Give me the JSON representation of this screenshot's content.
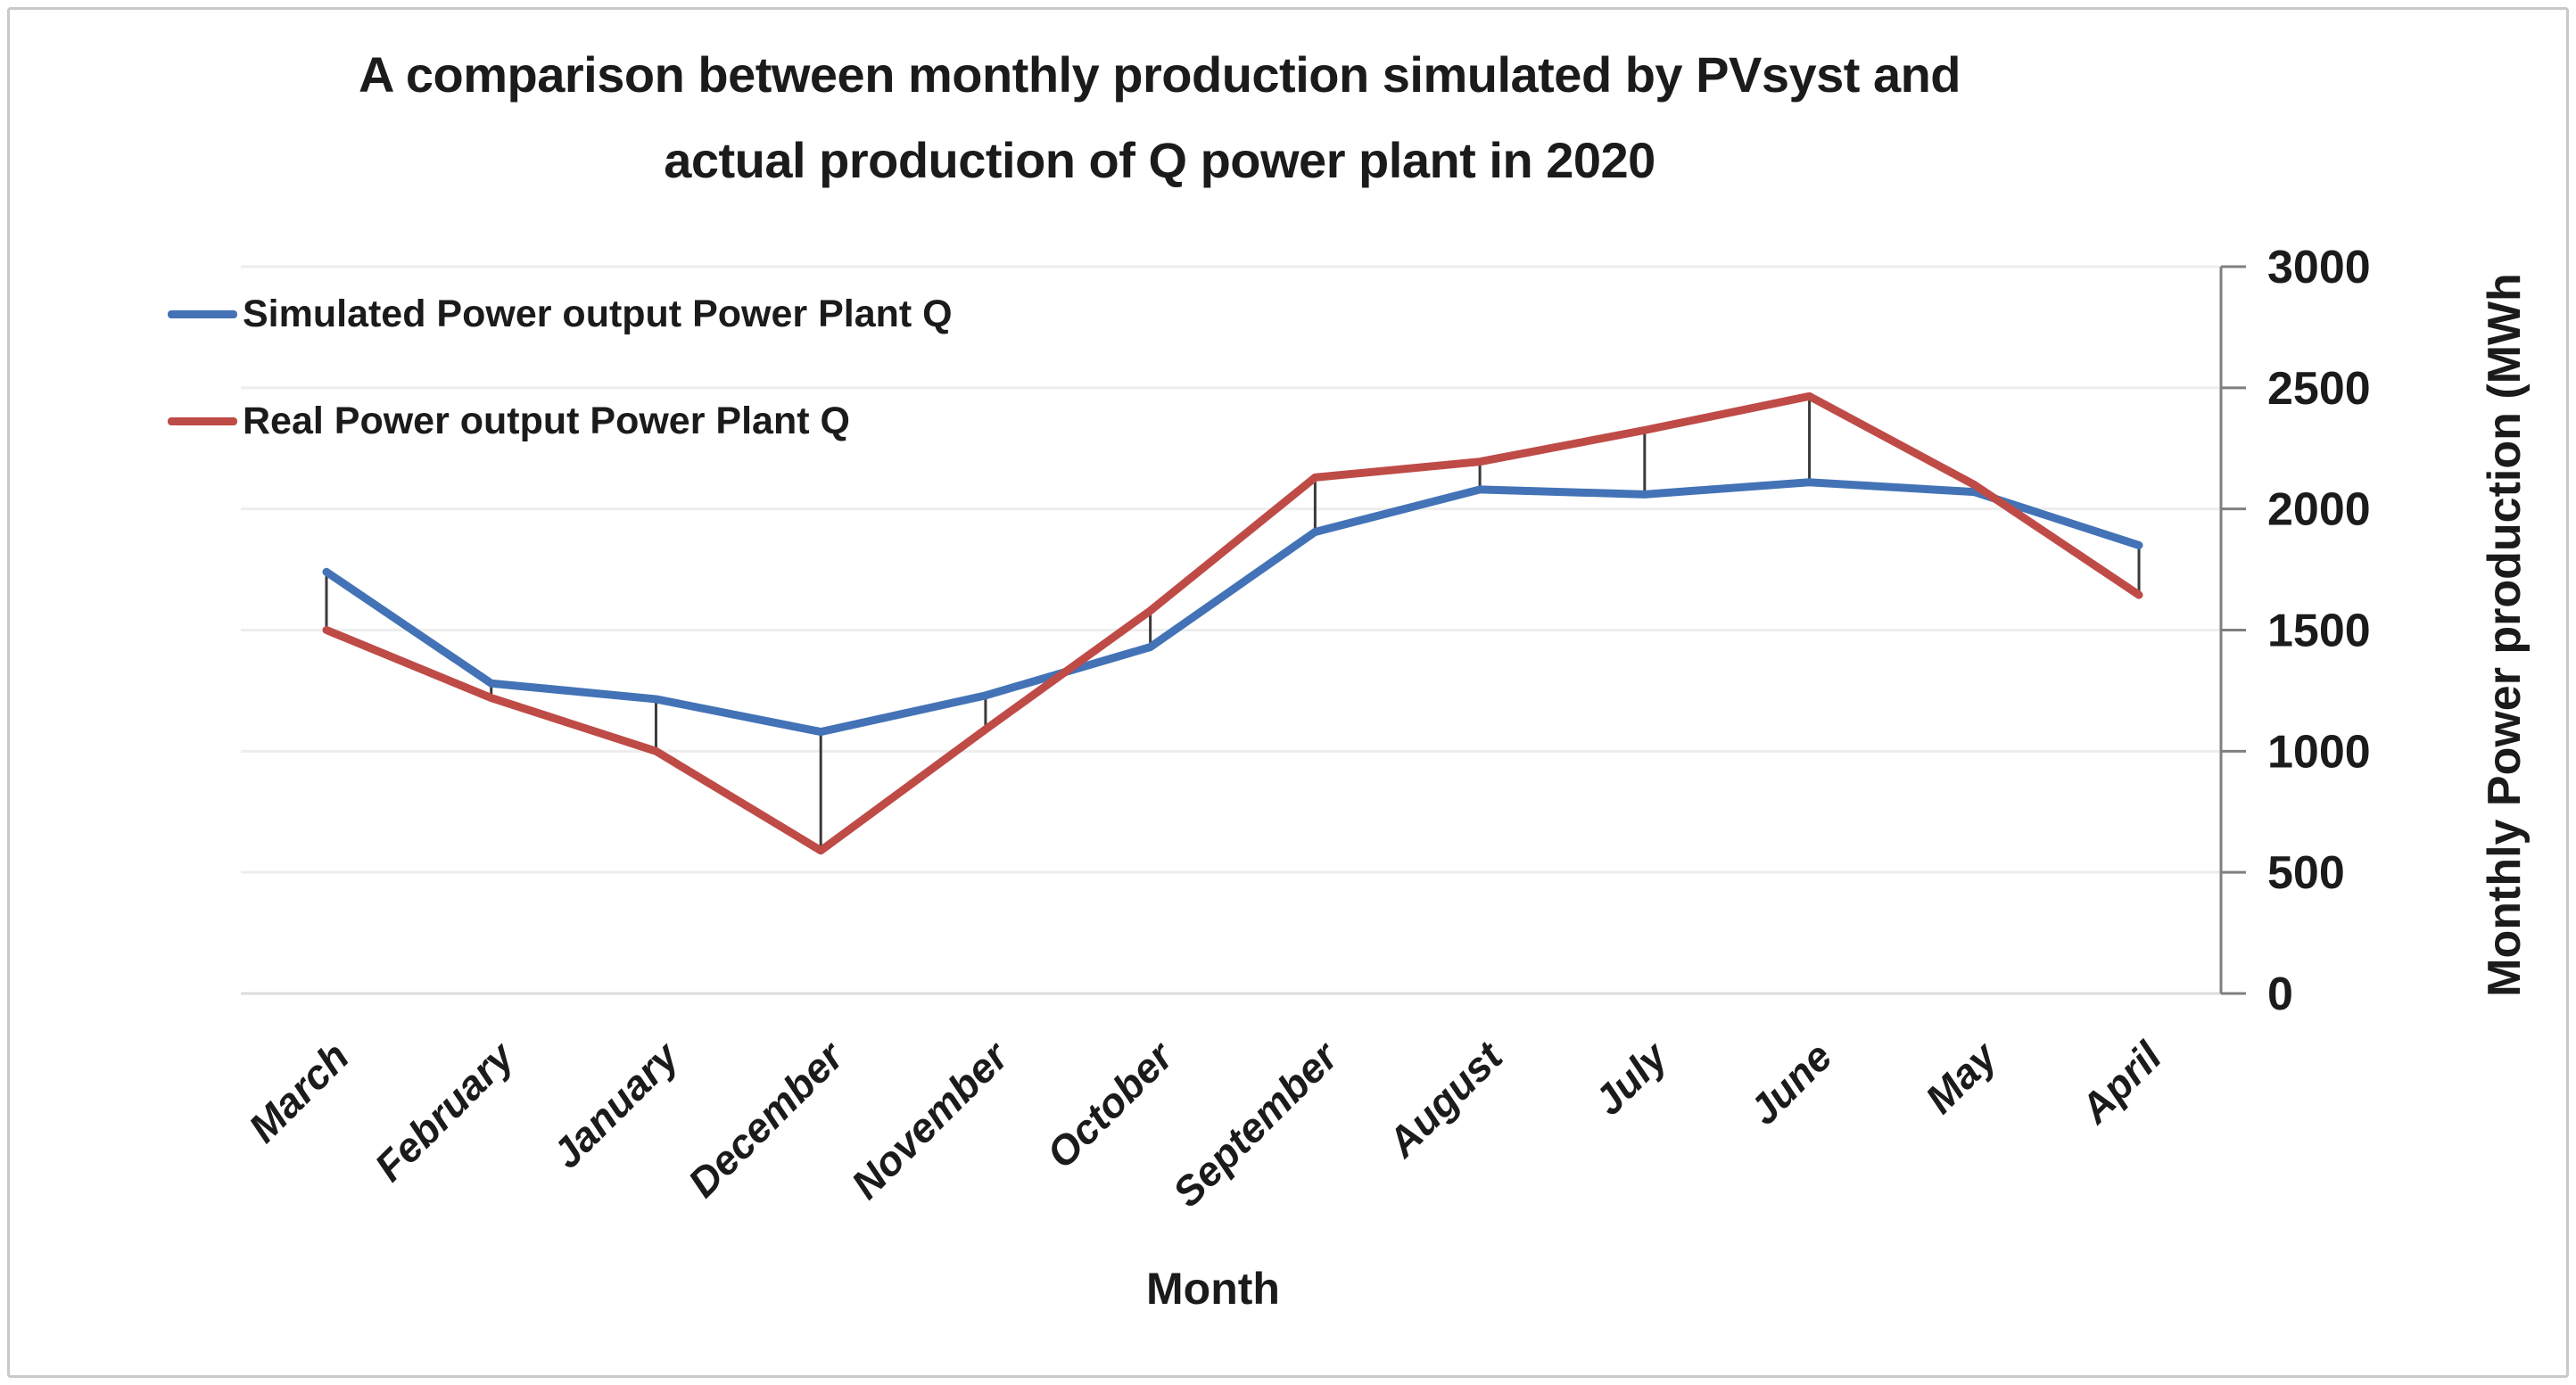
{
  "chart": {
    "title_line1": "A comparison between monthly production simulated by PVsyst and",
    "title_line2": "actual production of Q power plant in 2020",
    "x_axis_title": "Month",
    "y_axis_title": "Monthly Power production (MWh"
  },
  "legend": {
    "entries": [
      {
        "label": "Simulated Power output Power Plant Q",
        "color": "#4373B6"
      },
      {
        "label": "Real Power output Power Plant Q",
        "color": "#BF4B47"
      }
    ]
  },
  "chart_data": {
    "type": "line",
    "title": "A comparison between monthly production simulated by PVsyst and actual production of Q power plant in 2020",
    "categories": [
      "March",
      "February",
      "January",
      "December",
      "November",
      "October",
      "September",
      "August",
      "July",
      "June",
      "May",
      "April"
    ],
    "series": [
      {
        "name": "Simulated Power output Power Plant Q",
        "color": "#4373B6",
        "values": [
          1740,
          1280,
          1215,
          1080,
          1230,
          1430,
          1905,
          2080,
          2060,
          2110,
          2070,
          1850
        ]
      },
      {
        "name": "Real Power output Power Plant Q",
        "color": "#BF4B47",
        "values": [
          1500,
          1220,
          1000,
          590,
          1090,
          1580,
          2130,
          2195,
          2325,
          2465,
          2100,
          1645
        ]
      }
    ],
    "high_low_connectors": true,
    "xlabel": "Month",
    "ylabel": "Monthly Power production (MWh",
    "ylim": [
      0,
      3000
    ],
    "yticks": [
      0,
      500,
      1000,
      1500,
      2000,
      2500,
      3000
    ],
    "y_axis_side": "right",
    "grid": "horizontal-faint",
    "legend_position": "top-left",
    "colors": {
      "grid_line": "#ededed",
      "zero_line": "#dcdcdc",
      "axis_line": "#7f7f7f",
      "connector_line": "#3a3a3a",
      "text": "#1b1b1b"
    }
  }
}
